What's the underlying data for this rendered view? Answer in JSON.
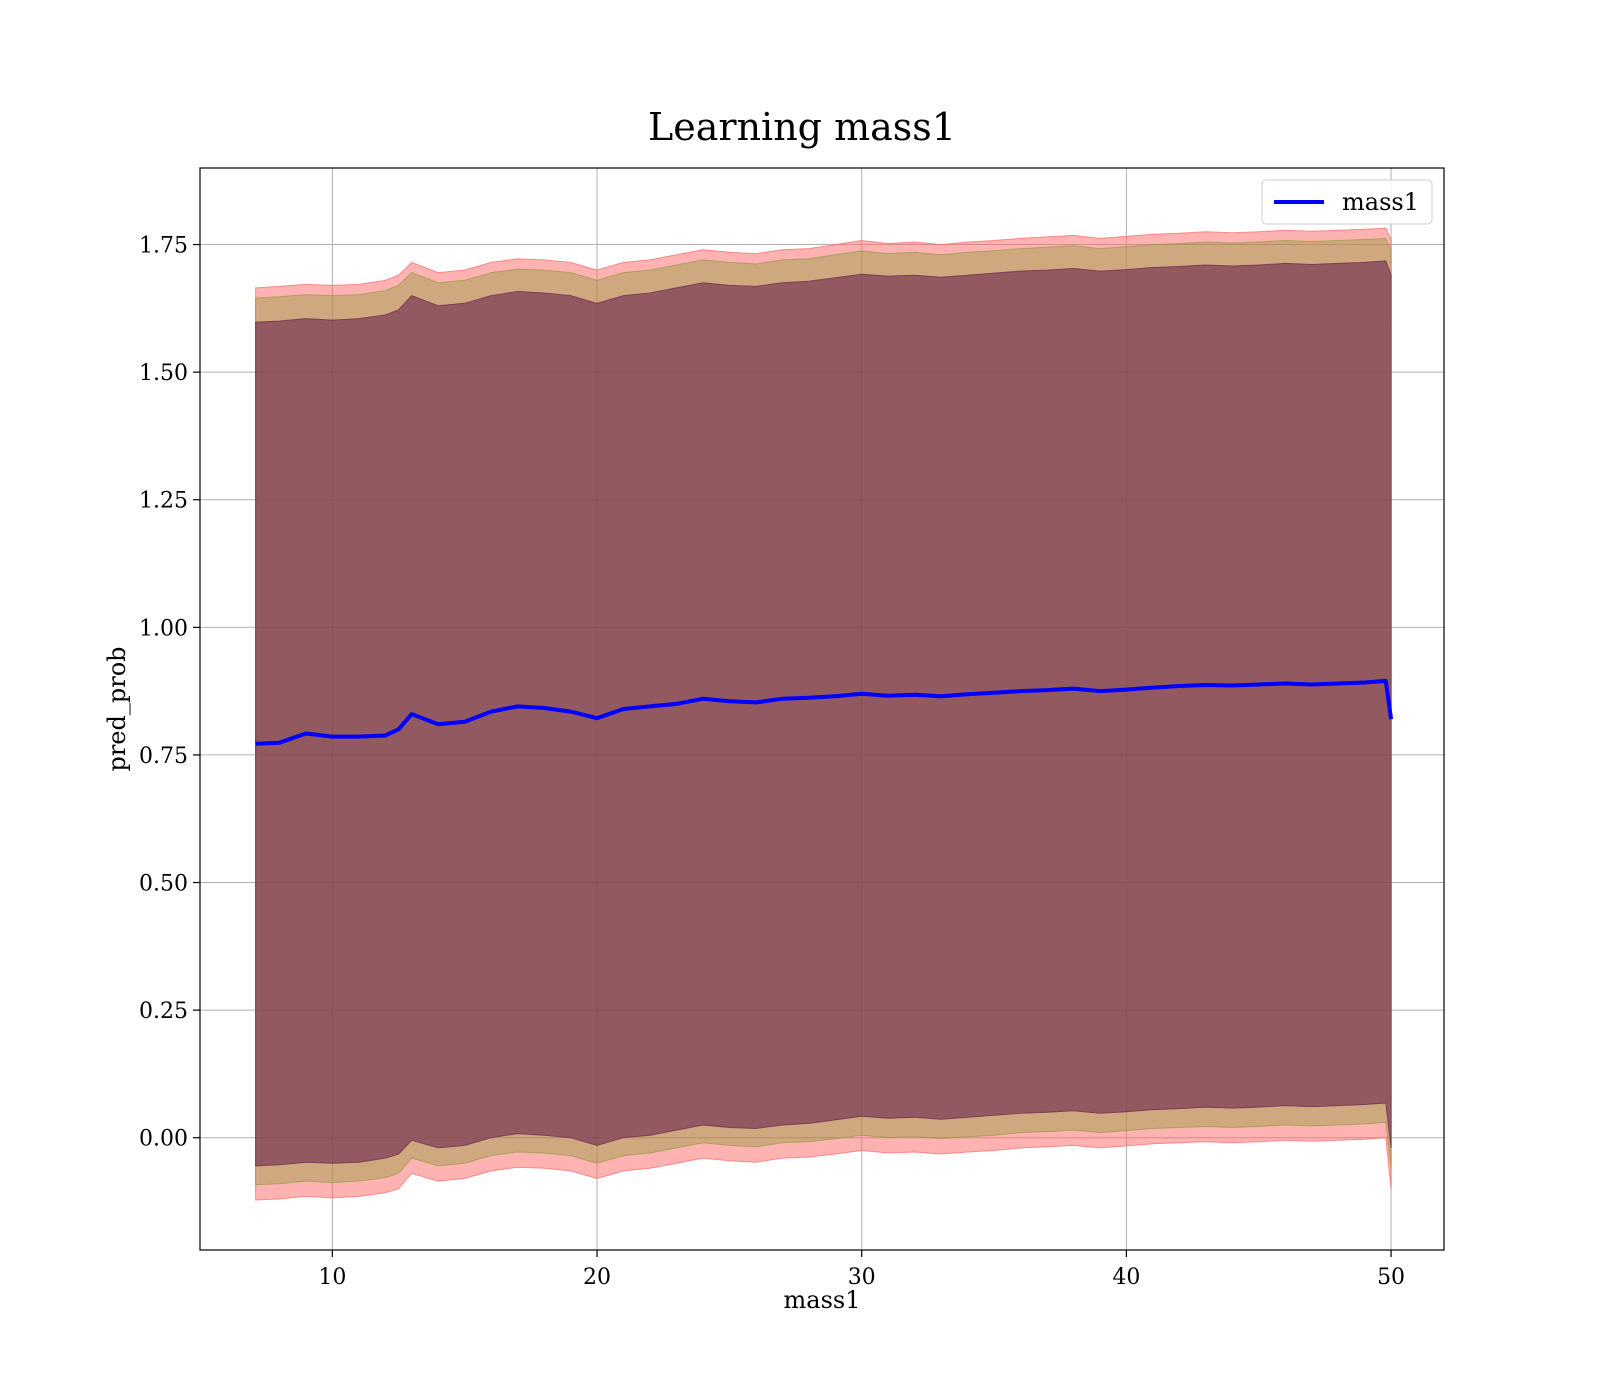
{
  "chart_data": {
    "type": "line",
    "title": "Learning mass1",
    "xlabel": "mass1",
    "ylabel": "pred_prob",
    "xlim": [
      5,
      52
    ],
    "ylim": [
      -0.22,
      1.9
    ],
    "xticks": [
      10,
      20,
      30,
      40,
      50
    ],
    "xtick_labels": [
      "10",
      "20",
      "30",
      "40",
      "50"
    ],
    "yticks": [
      0.0,
      0.25,
      0.5,
      0.75,
      1.0,
      1.25,
      1.5,
      1.75
    ],
    "ytick_labels": [
      "0.00",
      "0.25",
      "0.50",
      "0.75",
      "1.00",
      "1.25",
      "1.50",
      "1.75"
    ],
    "grid": true,
    "legend": {
      "position": "top-right",
      "entries": [
        "mass1"
      ]
    },
    "x": [
      7.1,
      8,
      9,
      10,
      11,
      12,
      12.5,
      13,
      14,
      15,
      16,
      17,
      18,
      19,
      20,
      21,
      22,
      23,
      24,
      25,
      26,
      27,
      28,
      29,
      30,
      31,
      32,
      33,
      34,
      35,
      36,
      37,
      38,
      39,
      40,
      41,
      42,
      43,
      44,
      45,
      46,
      47,
      48,
      49,
      49.8,
      50
    ],
    "series": [
      {
        "name": "mass1",
        "color": "#0000ff",
        "values": [
          0.772,
          0.774,
          0.792,
          0.786,
          0.786,
          0.788,
          0.8,
          0.83,
          0.81,
          0.815,
          0.835,
          0.845,
          0.842,
          0.835,
          0.822,
          0.84,
          0.845,
          0.85,
          0.86,
          0.855,
          0.853,
          0.86,
          0.862,
          0.865,
          0.87,
          0.866,
          0.868,
          0.865,
          0.869,
          0.872,
          0.875,
          0.877,
          0.88,
          0.875,
          0.878,
          0.882,
          0.885,
          0.887,
          0.886,
          0.888,
          0.89,
          0.888,
          0.89,
          0.892,
          0.895,
          0.82
        ]
      }
    ],
    "bands": [
      {
        "color": "#ff6666",
        "opacity": 0.5,
        "upper": [
          1.665,
          1.668,
          1.672,
          1.67,
          1.672,
          1.68,
          1.69,
          1.715,
          1.695,
          1.7,
          1.715,
          1.722,
          1.72,
          1.715,
          1.7,
          1.715,
          1.72,
          1.73,
          1.74,
          1.735,
          1.732,
          1.74,
          1.742,
          1.75,
          1.758,
          1.752,
          1.755,
          1.75,
          1.755,
          1.758,
          1.762,
          1.765,
          1.768,
          1.762,
          1.766,
          1.77,
          1.772,
          1.775,
          1.773,
          1.775,
          1.778,
          1.776,
          1.778,
          1.78,
          1.782,
          1.76
        ],
        "lower": [
          -0.122,
          -0.12,
          -0.115,
          -0.118,
          -0.115,
          -0.108,
          -0.1,
          -0.07,
          -0.085,
          -0.08,
          -0.065,
          -0.058,
          -0.06,
          -0.065,
          -0.08,
          -0.065,
          -0.06,
          -0.05,
          -0.04,
          -0.045,
          -0.048,
          -0.04,
          -0.038,
          -0.032,
          -0.025,
          -0.03,
          -0.028,
          -0.032,
          -0.028,
          -0.025,
          -0.02,
          -0.018,
          -0.015,
          -0.02,
          -0.016,
          -0.012,
          -0.01,
          -0.008,
          -0.01,
          -0.008,
          -0.005,
          -0.007,
          -0.005,
          -0.003,
          0.0,
          -0.1
        ]
      },
      {
        "color": "#8c9a3a",
        "opacity": 0.42,
        "upper": [
          1.645,
          1.648,
          1.652,
          1.65,
          1.652,
          1.66,
          1.67,
          1.695,
          1.675,
          1.68,
          1.695,
          1.702,
          1.7,
          1.695,
          1.68,
          1.695,
          1.7,
          1.71,
          1.72,
          1.715,
          1.712,
          1.72,
          1.722,
          1.73,
          1.738,
          1.732,
          1.735,
          1.73,
          1.735,
          1.738,
          1.742,
          1.745,
          1.748,
          1.742,
          1.746,
          1.75,
          1.752,
          1.755,
          1.753,
          1.755,
          1.758,
          1.756,
          1.758,
          1.76,
          1.762,
          1.74
        ],
        "lower": [
          -0.092,
          -0.09,
          -0.085,
          -0.088,
          -0.085,
          -0.078,
          -0.07,
          -0.04,
          -0.055,
          -0.05,
          -0.035,
          -0.028,
          -0.03,
          -0.035,
          -0.05,
          -0.035,
          -0.03,
          -0.02,
          -0.01,
          -0.015,
          -0.018,
          -0.01,
          -0.008,
          -0.002,
          0.005,
          0.0,
          0.002,
          -0.002,
          0.002,
          0.005,
          0.01,
          0.012,
          0.015,
          0.01,
          0.014,
          0.018,
          0.02,
          0.022,
          0.02,
          0.022,
          0.025,
          0.023,
          0.025,
          0.027,
          0.03,
          -0.06
        ]
      },
      {
        "color": "#7a3a55",
        "opacity": 0.72,
        "upper": [
          1.598,
          1.6,
          1.605,
          1.602,
          1.605,
          1.612,
          1.622,
          1.65,
          1.63,
          1.635,
          1.65,
          1.658,
          1.655,
          1.65,
          1.635,
          1.65,
          1.655,
          1.665,
          1.675,
          1.67,
          1.668,
          1.675,
          1.678,
          1.685,
          1.692,
          1.688,
          1.69,
          1.686,
          1.69,
          1.694,
          1.698,
          1.7,
          1.703,
          1.698,
          1.701,
          1.705,
          1.707,
          1.71,
          1.708,
          1.71,
          1.713,
          1.711,
          1.713,
          1.715,
          1.718,
          1.69
        ],
        "lower": [
          -0.055,
          -0.053,
          -0.048,
          -0.05,
          -0.048,
          -0.04,
          -0.032,
          -0.005,
          -0.02,
          -0.015,
          0.0,
          0.008,
          0.005,
          0.0,
          -0.015,
          0.0,
          0.005,
          0.015,
          0.025,
          0.02,
          0.018,
          0.025,
          0.028,
          0.035,
          0.042,
          0.038,
          0.04,
          0.036,
          0.04,
          0.044,
          0.048,
          0.05,
          0.053,
          0.048,
          0.051,
          0.055,
          0.057,
          0.06,
          0.058,
          0.06,
          0.063,
          0.061,
          0.063,
          0.065,
          0.068,
          -0.02
        ]
      }
    ]
  }
}
